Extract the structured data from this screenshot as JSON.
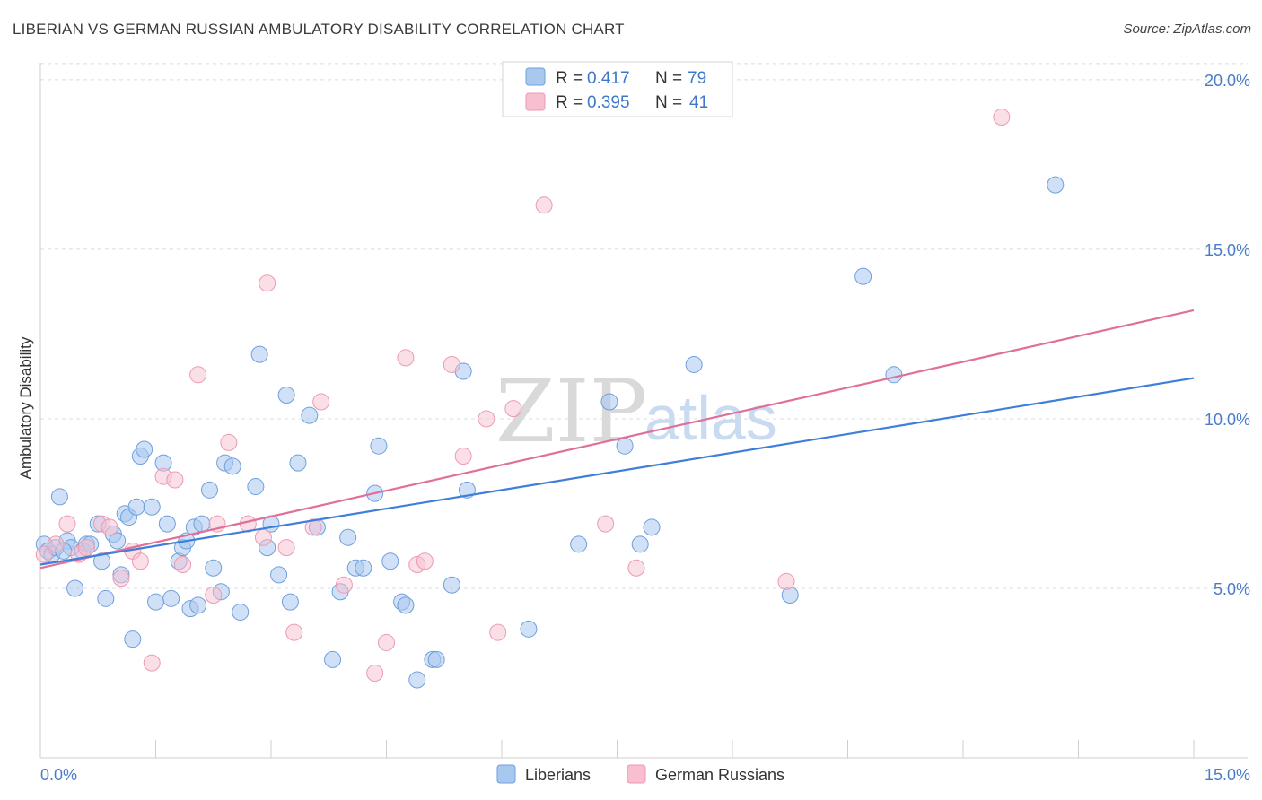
{
  "header": {
    "title": "LIBERIAN VS GERMAN RUSSIAN AMBULATORY DISABILITY CORRELATION CHART",
    "source": "Source: ZipAtlas.com"
  },
  "watermark": {
    "zip": "ZIP",
    "atlas": "atlas"
  },
  "legend": {
    "rows": [
      {
        "r_label": "R =",
        "r_value": "0.417",
        "n_label": "N =",
        "n_value": "79"
      },
      {
        "r_label": "R =",
        "r_value": "0.395",
        "n_label": "N =",
        "n_value": "41"
      }
    ]
  },
  "bottom_legend": {
    "liberians": "Liberians",
    "german_russians": "German Russians"
  },
  "colors": {
    "liberians_fill": "#a9c8f0",
    "liberians_stroke": "#6f9fdc",
    "liberians_line": "#3f7fd9",
    "german_fill": "#f7bfd0",
    "german_stroke": "#ec9ab4",
    "german_line": "#e0709a"
  },
  "chart_data": {
    "type": "scatter",
    "title": "LIBERIAN VS GERMAN RUSSIAN AMBULATORY DISABILITY CORRELATION CHART",
    "xlabel": "",
    "ylabel": "Ambulatory Disability",
    "xlim": [
      0,
      15
    ],
    "ylim": [
      0,
      20.5
    ],
    "x_tick_labels": [
      "0.0%",
      "15.0%"
    ],
    "y_ticks": [
      5,
      10,
      15,
      20
    ],
    "y_tick_labels": [
      "5.0%",
      "10.0%",
      "15.0%",
      "20.0%"
    ],
    "grid": true,
    "legend_position": "top-center",
    "series": [
      {
        "name": "Liberians",
        "R": 0.417,
        "N": 79,
        "trend": {
          "x": [
            0,
            15
          ],
          "y": [
            5.7,
            11.2
          ]
        },
        "points": [
          [
            0.05,
            6.3
          ],
          [
            0.1,
            6.1
          ],
          [
            0.15,
            6.0
          ],
          [
            0.2,
            6.2
          ],
          [
            0.35,
            6.4
          ],
          [
            0.4,
            6.2
          ],
          [
            0.45,
            5.0
          ],
          [
            0.55,
            6.1
          ],
          [
            0.6,
            6.3
          ],
          [
            0.65,
            6.3
          ],
          [
            0.75,
            6.9
          ],
          [
            0.8,
            5.8
          ],
          [
            0.85,
            4.7
          ],
          [
            0.95,
            6.6
          ],
          [
            1.05,
            5.4
          ],
          [
            1.1,
            7.2
          ],
          [
            1.15,
            7.1
          ],
          [
            1.25,
            7.4
          ],
          [
            1.3,
            8.9
          ],
          [
            1.35,
            9.1
          ],
          [
            1.45,
            7.4
          ],
          [
            1.5,
            4.6
          ],
          [
            1.6,
            8.7
          ],
          [
            1.7,
            4.7
          ],
          [
            1.8,
            5.8
          ],
          [
            1.85,
            6.2
          ],
          [
            1.9,
            6.4
          ],
          [
            1.95,
            4.4
          ],
          [
            2.0,
            6.8
          ],
          [
            2.1,
            6.9
          ],
          [
            2.2,
            7.9
          ],
          [
            2.25,
            5.6
          ],
          [
            2.35,
            4.9
          ],
          [
            2.4,
            8.7
          ],
          [
            2.5,
            8.6
          ],
          [
            2.6,
            4.3
          ],
          [
            2.8,
            8.0
          ],
          [
            2.85,
            11.9
          ],
          [
            2.95,
            6.2
          ],
          [
            3.0,
            6.9
          ],
          [
            3.1,
            5.4
          ],
          [
            3.2,
            10.7
          ],
          [
            3.35,
            8.7
          ],
          [
            3.5,
            10.1
          ],
          [
            3.6,
            6.8
          ],
          [
            3.8,
            2.9
          ],
          [
            3.9,
            4.9
          ],
          [
            4.0,
            6.5
          ],
          [
            4.1,
            5.6
          ],
          [
            4.2,
            5.6
          ],
          [
            4.35,
            7.8
          ],
          [
            4.4,
            9.2
          ],
          [
            4.55,
            5.8
          ],
          [
            4.7,
            4.6
          ],
          [
            4.75,
            4.5
          ],
          [
            4.9,
            2.3
          ],
          [
            5.1,
            2.9
          ],
          [
            5.15,
            2.9
          ],
          [
            5.35,
            5.1
          ],
          [
            5.5,
            11.4
          ],
          [
            5.55,
            7.9
          ],
          [
            6.35,
            3.8
          ],
          [
            7.0,
            6.3
          ],
          [
            7.4,
            10.5
          ],
          [
            7.6,
            9.2
          ],
          [
            7.8,
            6.3
          ],
          [
            7.95,
            6.8
          ],
          [
            8.5,
            11.6
          ],
          [
            9.75,
            4.8
          ],
          [
            10.7,
            14.2
          ],
          [
            11.1,
            11.3
          ],
          [
            13.2,
            16.9
          ],
          [
            0.3,
            6.1
          ],
          [
            1.0,
            6.4
          ],
          [
            0.25,
            7.7
          ],
          [
            1.2,
            3.5
          ],
          [
            1.65,
            6.9
          ],
          [
            2.05,
            4.5
          ],
          [
            3.25,
            4.6
          ]
        ]
      },
      {
        "name": "German Russians",
        "R": 0.395,
        "N": 41,
        "trend": {
          "x": [
            0,
            15
          ],
          "y": [
            5.6,
            13.2
          ]
        },
        "points": [
          [
            0.05,
            6.0
          ],
          [
            0.2,
            6.3
          ],
          [
            0.35,
            6.9
          ],
          [
            0.5,
            6.0
          ],
          [
            0.6,
            6.2
          ],
          [
            0.8,
            6.9
          ],
          [
            0.9,
            6.8
          ],
          [
            1.05,
            5.3
          ],
          [
            1.2,
            6.1
          ],
          [
            1.3,
            5.8
          ],
          [
            1.45,
            2.8
          ],
          [
            1.6,
            8.3
          ],
          [
            1.75,
            8.2
          ],
          [
            1.85,
            5.7
          ],
          [
            2.05,
            11.3
          ],
          [
            2.25,
            4.8
          ],
          [
            2.45,
            9.3
          ],
          [
            2.7,
            6.9
          ],
          [
            2.9,
            6.5
          ],
          [
            2.95,
            14.0
          ],
          [
            3.2,
            6.2
          ],
          [
            3.3,
            3.7
          ],
          [
            3.55,
            6.8
          ],
          [
            3.65,
            10.5
          ],
          [
            3.95,
            5.1
          ],
          [
            4.35,
            2.5
          ],
          [
            4.5,
            3.4
          ],
          [
            4.75,
            11.8
          ],
          [
            4.9,
            5.7
          ],
          [
            5.0,
            5.8
          ],
          [
            5.35,
            11.6
          ],
          [
            5.5,
            8.9
          ],
          [
            5.8,
            10.0
          ],
          [
            5.95,
            3.7
          ],
          [
            6.15,
            10.3
          ],
          [
            6.55,
            16.3
          ],
          [
            7.35,
            6.9
          ],
          [
            7.75,
            5.6
          ],
          [
            9.7,
            5.2
          ],
          [
            12.5,
            18.9
          ],
          [
            2.3,
            6.9
          ]
        ]
      }
    ]
  }
}
